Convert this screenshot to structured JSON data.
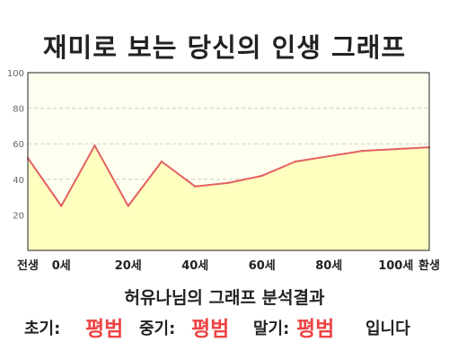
{
  "page": {
    "title": "재미로 보는 당신의 인생 그래프"
  },
  "result": {
    "summary": "허유나님의 그래프 분석결과",
    "early_label": "초기:",
    "early_value": "평범",
    "mid_label": "중기:",
    "mid_value": "평범",
    "late_label": "말기:",
    "late_value": "평범",
    "suffix": "입니다"
  },
  "colors": {
    "line": "#e46060",
    "fill": "#ffffc0",
    "plot_bg": "#fffff0",
    "grid": "#cccccc",
    "value_text": "#ee4444"
  },
  "chart_data": {
    "type": "area",
    "x": [
      0,
      1,
      2,
      3,
      4,
      5,
      6,
      7,
      8,
      9,
      10,
      11,
      12
    ],
    "y": [
      52,
      25,
      59,
      25,
      50,
      36,
      38,
      42,
      50,
      53,
      56,
      57,
      58
    ],
    "x_tick_labels": [
      {
        "x": 0,
        "label": "전생"
      },
      {
        "x": 1,
        "label": "0세"
      },
      {
        "x": 3,
        "label": "20세"
      },
      {
        "x": 5,
        "label": "40세"
      },
      {
        "x": 7,
        "label": "60세"
      },
      {
        "x": 9,
        "label": "80세"
      },
      {
        "x": 11,
        "label": "100세"
      },
      {
        "x": 12,
        "label": "환생"
      }
    ],
    "y_ticks": [
      20,
      40,
      60,
      80,
      100
    ],
    "ylim": [
      0,
      100
    ],
    "xlim": [
      0,
      12
    ],
    "grid": "horizontal-dashed",
    "legend": "none"
  }
}
